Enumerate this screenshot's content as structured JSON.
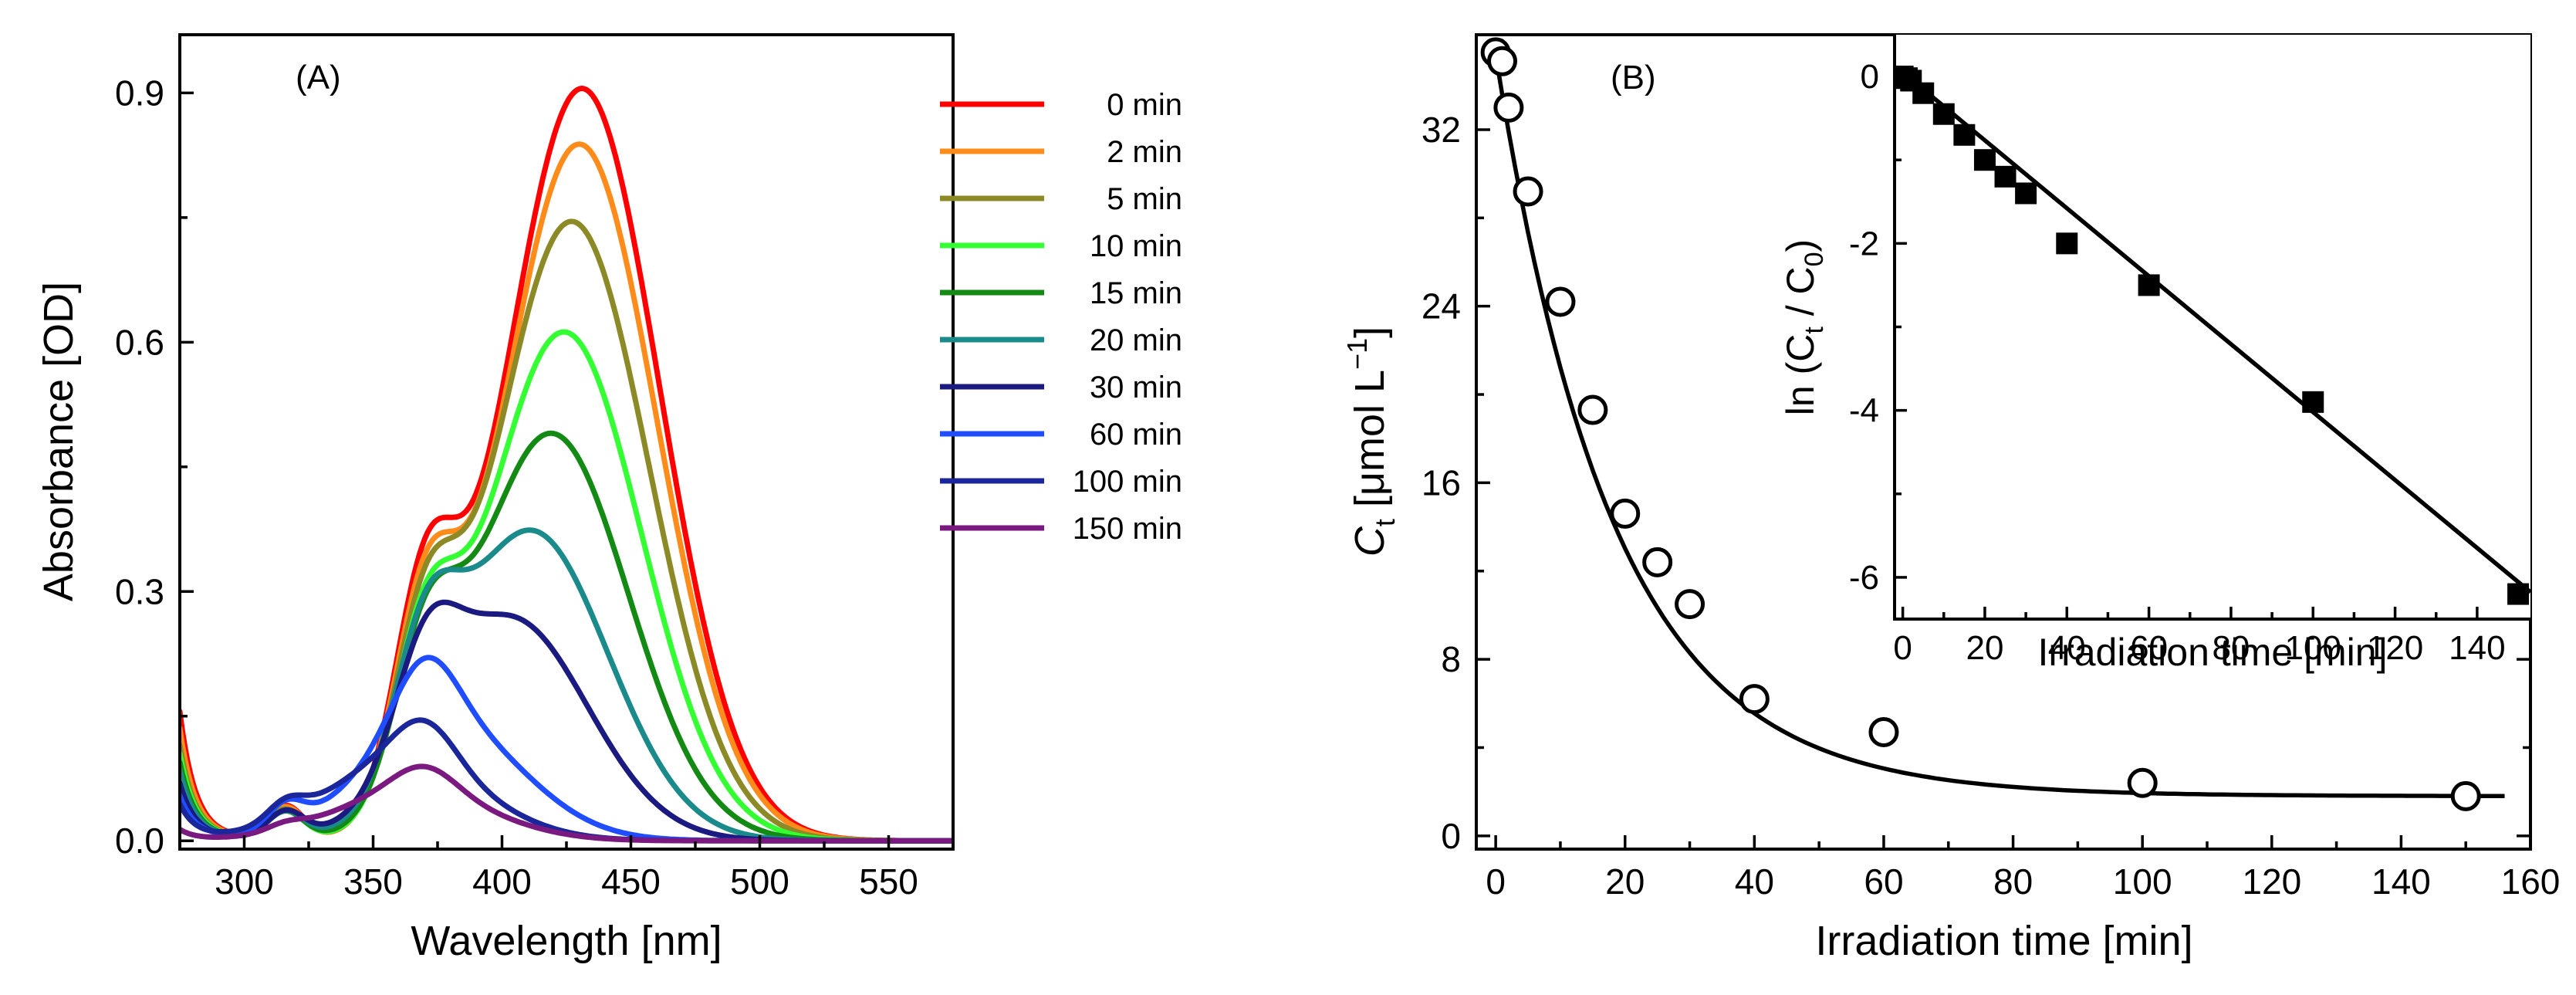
{
  "chart_data": [
    {
      "type": "line",
      "panel_label": "(A)",
      "xlabel": "Wavelength [nm]",
      "ylabel": "Absorbance [OD]",
      "xlim": [
        275,
        575
      ],
      "ylim": [
        -0.01,
        0.97
      ],
      "xticks": [
        300,
        350,
        400,
        450,
        500,
        550
      ],
      "yticks": [
        0.0,
        0.3,
        0.6,
        0.9
      ],
      "xtick_labels": [
        "300",
        "350",
        "400",
        "450",
        "500",
        "550"
      ],
      "ytick_labels": [
        "0.0",
        "0.3",
        "0.6",
        "0.9"
      ],
      "legend_position": "top-right",
      "series": [
        {
          "name": "0 min",
          "color": "#ff0000",
          "a_low": 0.15,
          "p_bump": 0.112,
          "p_near": 0.45,
          "p_dip": 0.37,
          "p_max": 0.905,
          "lam_max": 431
        },
        {
          "name": "2 min",
          "color": "#ff8c1a",
          "a_low": 0.13,
          "p_bump": 0.108,
          "p_near": 0.418,
          "p_dip": 0.355,
          "p_max": 0.838,
          "lam_max": 430
        },
        {
          "name": "5 min",
          "color": "#8c8a26",
          "a_low": 0.11,
          "p_bump": 0.1,
          "p_near": 0.373,
          "p_dip": 0.345,
          "p_max": 0.745,
          "lam_max": 427
        },
        {
          "name": "10 min",
          "color": "#33ff33",
          "a_low": 0.1,
          "p_bump": 0.095,
          "p_near": 0.337,
          "p_dip": 0.332,
          "p_max": 0.612,
          "lam_max": 424
        },
        {
          "name": "15 min",
          "color": "#138a13",
          "a_low": 0.09,
          "p_bump": 0.092,
          "p_near": 0.298,
          "p_dip": 0.297,
          "p_max": 0.49,
          "lam_max": 419
        },
        {
          "name": "20 min",
          "color": "#1a8a8a",
          "a_low": 0.08,
          "p_bump": 0.09,
          "p_near": 0.275,
          "p_dip": 0.285,
          "p_max": 0.373,
          "lam_max": 411
        },
        {
          "name": "30 min",
          "color": "#1a1a80",
          "a_low": 0.065,
          "p_bump": 0.088,
          "p_near": 0.22,
          "p_dip": 0.222,
          "p_max": 0.268,
          "lam_max": 403
        },
        {
          "name": "60 min",
          "color": "#1f4dff",
          "a_low": 0.05,
          "p_bump": 0.082,
          "p_near": 0.145,
          "p_dip": 0.143,
          "p_max": 0.143,
          "lam_max": 377
        },
        {
          "name": "100 min",
          "color": "#1a2699",
          "a_low": 0.04,
          "p_bump": 0.06,
          "p_near": 0.095,
          "p_dip": 0.085,
          "p_max": 0.095,
          "lam_max": 362
        },
        {
          "name": "150 min",
          "color": "#7a1a80",
          "a_low": 0.012,
          "p_bump": 0.022,
          "p_near": 0.058,
          "p_dip": 0.055,
          "p_max": 0.058,
          "lam_max": 365
        }
      ]
    },
    {
      "type": "scatter",
      "panel_label": "(B)",
      "xlabel": "Irradiation time [min]",
      "ylabel_main": "C",
      "ylabel_sub": "t",
      "ylabel_rest": " [μmol L",
      "ylabel_sup": "−1",
      "ylabel_end": "]",
      "xlim": [
        -3,
        160
      ],
      "ylim": [
        -0.6,
        36.3
      ],
      "xticks": [
        0,
        20,
        40,
        60,
        80,
        100,
        120,
        140,
        160
      ],
      "yticks": [
        0,
        8,
        16,
        24,
        32
      ],
      "xtick_labels": [
        "0",
        "20",
        "40",
        "60",
        "80",
        "100",
        "120",
        "140",
        "160"
      ],
      "ytick_labels": [
        "0",
        "8",
        "16",
        "24",
        "32"
      ],
      "points": {
        "x": [
          0,
          1,
          2,
          5,
          10,
          15,
          20,
          25,
          30,
          40,
          60,
          100,
          150
        ],
        "y": [
          35.5,
          35.1,
          33.0,
          29.2,
          24.2,
          19.3,
          14.6,
          12.4,
          10.5,
          6.2,
          4.7,
          2.4,
          1.8
        ]
      },
      "fit": {
        "c0": 35.4,
        "k": 0.0548,
        "c_inf": 1.8,
        "x_end": 156
      }
    },
    {
      "type": "scatter",
      "inset": true,
      "xlabel": "Irradiation time [min]",
      "ylabel_pre": "ln (C",
      "ylabel_sub1": "t",
      "ylabel_mid": " / C",
      "ylabel_sub2": "0",
      "ylabel_end": ")",
      "xlim": [
        -2,
        153
      ],
      "ylim": [
        -6.5,
        0.5
      ],
      "xticks": [
        0,
        20,
        40,
        60,
        80,
        100,
        120,
        140
      ],
      "yticks": [
        0,
        -2,
        -4,
        -6
      ],
      "xtick_labels": [
        "0",
        "20",
        "40",
        "60",
        "80",
        "100",
        "120",
        "140"
      ],
      "ytick_labels": [
        "0",
        "-2",
        "-4",
        "-6"
      ],
      "points": {
        "x": [
          0,
          1,
          2,
          5,
          10,
          15,
          20,
          25,
          30,
          40,
          60,
          100,
          150
        ],
        "y": [
          0.0,
          -0.02,
          -0.05,
          -0.2,
          -0.45,
          -0.7,
          -1.0,
          -1.2,
          -1.4,
          -2.0,
          -2.5,
          -3.9,
          -6.2
        ]
      },
      "fit": {
        "slope": -0.0407,
        "intercept": 0.05,
        "x_start": 0,
        "x_end": 153
      }
    }
  ]
}
